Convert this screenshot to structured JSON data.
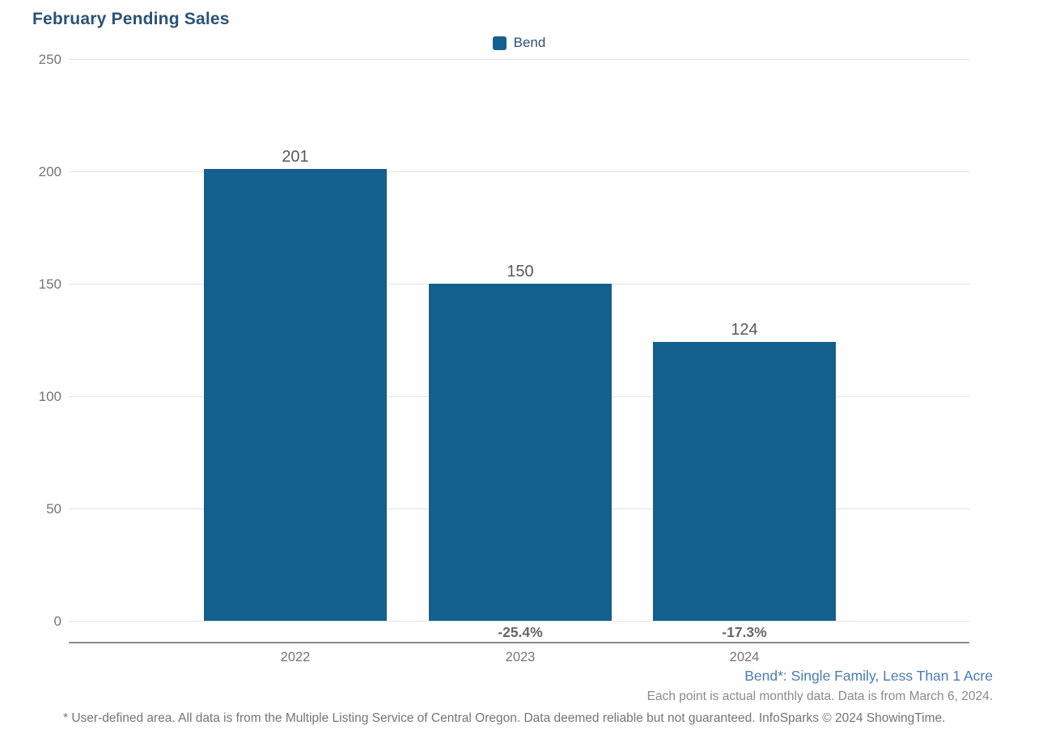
{
  "title": "February Pending Sales",
  "legend": {
    "label": "Bend"
  },
  "chart_data": {
    "type": "bar",
    "title": "February Pending Sales",
    "categories": [
      "2022",
      "2023",
      "2024"
    ],
    "series": [
      {
        "name": "Bend",
        "values": [
          201,
          150,
          124
        ]
      }
    ],
    "value_labels": [
      "201",
      "150",
      "124"
    ],
    "pct_change_labels": [
      "",
      "-25.4%",
      "-17.3%"
    ],
    "yticks": [
      0,
      50,
      100,
      150,
      200,
      250
    ],
    "ylim": [
      0,
      250
    ],
    "xlabel": "",
    "ylabel": "",
    "grid": true,
    "legend_position": "top-center",
    "legend_entries": [
      "Bend"
    ]
  },
  "annotations": {
    "series_definition": "Bend*: Single Family, Less Than 1 Acre",
    "data_note": "Each point is actual monthly data. Data is from March 6, 2024."
  },
  "footer": "* User-defined area. All data is from the Multiple Listing Service of Central Oregon. Data deemed reliable but not guaranteed. InfoSparks © 2024 ShowingTime.",
  "colors": {
    "bar": "#13608F",
    "title_text": "#2A5279",
    "legend_text": "#2A5279",
    "value_label": "#58595B",
    "pct_label": "#666666",
    "tick_label": "#757575",
    "year_label": "#757575",
    "gridline": "#E4E4E4",
    "axis_line": "#8E8E8E",
    "annotation_blue": "#4A7CB5",
    "annotation_gray": "#8A8A8A",
    "footer_gray": "#757575"
  }
}
